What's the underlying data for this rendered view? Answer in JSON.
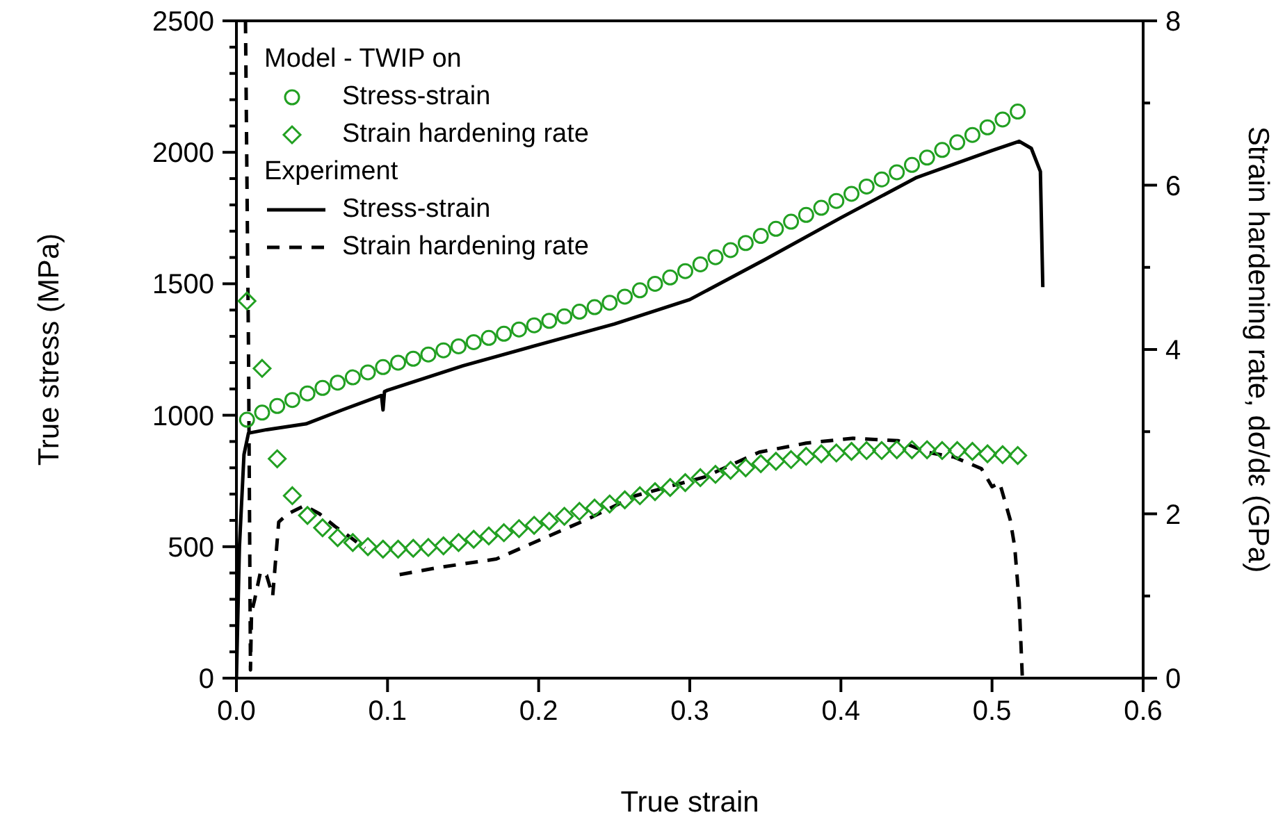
{
  "chart_data": {
    "type": "scatter",
    "xlabel": "True strain",
    "ylabel": "True stress (MPa)",
    "y2label": "Strain hardening rate, dσ/dε (GPa)",
    "annotations": [
      "Model - TWIP on",
      "Experiment"
    ],
    "x": [
      0.007,
      0.017,
      0.027,
      0.037,
      0.047,
      0.057,
      0.067,
      0.077,
      0.087,
      0.097,
      0.107,
      0.117,
      0.127,
      0.137,
      0.147,
      0.157,
      0.167,
      0.177,
      0.187,
      0.197,
      0.207,
      0.217,
      0.227,
      0.237,
      0.247,
      0.257,
      0.267,
      0.277,
      0.287,
      0.297,
      0.307,
      0.317,
      0.327,
      0.337,
      0.347,
      0.357,
      0.367,
      0.377,
      0.387,
      0.397,
      0.407,
      0.417,
      0.427,
      0.437,
      0.447,
      0.457,
      0.467,
      0.477,
      0.487,
      0.497,
      0.507,
      0.517
    ],
    "series": [
      {
        "name": "Stress-strain",
        "type": "scatter",
        "marker": "circle",
        "color": "#22a022",
        "values": [
          983,
          1010,
          1035,
          1058,
          1083,
          1104,
          1124,
          1144,
          1163,
          1183,
          1200,
          1215,
          1231,
          1247,
          1262,
          1278,
          1294,
          1310,
          1326,
          1342,
          1359,
          1376,
          1394,
          1411,
          1428,
          1451,
          1475,
          1500,
          1524,
          1548,
          1574,
          1601,
          1628,
          1655,
          1682,
          1709,
          1736,
          1762,
          1789,
          1815,
          1842,
          1870,
          1897,
          1924,
          1952,
          1980,
          2009,
          2038,
          2066,
          2095,
          2125,
          2155
        ]
      },
      {
        "name": "Strain hardening rate",
        "type": "scatter",
        "marker": "diamond",
        "axis": "y2",
        "color": "#22a022",
        "values": [
          4.59,
          3.77,
          2.67,
          2.22,
          1.98,
          1.83,
          1.71,
          1.65,
          1.6,
          1.57,
          1.57,
          1.58,
          1.59,
          1.61,
          1.65,
          1.69,
          1.73,
          1.77,
          1.82,
          1.86,
          1.91,
          1.97,
          2.03,
          2.07,
          2.12,
          2.17,
          2.22,
          2.27,
          2.32,
          2.38,
          2.44,
          2.48,
          2.53,
          2.56,
          2.61,
          2.64,
          2.66,
          2.7,
          2.73,
          2.74,
          2.76,
          2.77,
          2.77,
          2.78,
          2.78,
          2.78,
          2.77,
          2.77,
          2.76,
          2.73,
          2.72,
          2.71
        ]
      },
      {
        "name": "Stress-strain",
        "type": "line",
        "marker": "none",
        "line_style": "solid",
        "color": "#000000",
        "x": [
          0,
          0.002,
          0.005,
          0.008,
          0.02,
          0.046,
          0.07,
          0.096,
          0.097,
          0.098,
          0.1,
          0.15,
          0.2,
          0.25,
          0.3,
          0.35,
          0.4,
          0.45,
          0.5,
          0.518,
          0.526,
          0.532,
          0.5336
        ],
        "values": [
          0,
          500,
          850,
          932,
          945,
          967,
          1020,
          1075,
          1020,
          1090,
          1095,
          1188,
          1268,
          1347,
          1440,
          1593,
          1751,
          1904,
          2007,
          2042,
          2015,
          1927,
          1487
        ]
      },
      {
        "name": "Strain hardening rate",
        "type": "line",
        "marker": "none",
        "line_style": "dashed",
        "axis": "y2",
        "color": "#000000",
        "x": [
          0.006,
          0.008,
          0.0093,
          0.01,
          0.012,
          0.016,
          0.02,
          0.024,
          0.028,
          0.034,
          0.045,
          0.055,
          0.065,
          0.075,
          0.085,
          0.095,
          0.108,
          0.135,
          0.172,
          0.203,
          0.233,
          0.264,
          0.31,
          0.346,
          0.377,
          0.408,
          0.438,
          0.457,
          0.475,
          0.493,
          0.5,
          0.505,
          0.512,
          0.515,
          0.518,
          0.52
        ],
        "values": [
          8,
          4,
          0.1,
          0.8,
          0.95,
          1.3,
          1.25,
          1.0,
          1.9,
          2.0,
          2.1,
          2.0,
          1.85,
          1.72,
          1.58,
          null,
          1.26,
          1.35,
          1.45,
          1.7,
          1.94,
          2.22,
          2.45,
          2.75,
          2.86,
          2.92,
          2.89,
          2.75,
          2.69,
          2.55,
          2.33,
          2.38,
          1.93,
          1.6,
          0.92,
          0.03
        ]
      }
    ],
    "xlim": [
      0,
      0.6
    ],
    "xticks": [
      {
        "value": 0,
        "label": "0.0"
      },
      0.1,
      0.2,
      0.3,
      0.4,
      0.5,
      0.6
    ],
    "ylim": [
      0,
      2500
    ],
    "yticks": [
      0,
      {
        "value": 100,
        "label": null
      },
      {
        "value": 200,
        "label": null
      },
      {
        "value": 300,
        "label": null
      },
      {
        "value": 400,
        "label": null
      },
      500,
      {
        "value": 600,
        "label": null
      },
      {
        "value": 700,
        "label": null
      },
      {
        "value": 800,
        "label": null
      },
      {
        "value": 900,
        "label": null
      },
      1000,
      {
        "value": 1100,
        "label": null
      },
      {
        "value": 1200,
        "label": null
      },
      {
        "value": 1300,
        "label": null
      },
      {
        "value": 1400,
        "label": null
      },
      1500,
      {
        "value": 1600,
        "label": null
      },
      {
        "value": 1700,
        "label": null
      },
      {
        "value": 1800,
        "label": null
      },
      {
        "value": 1900,
        "label": null
      },
      2000,
      {
        "value": 2100,
        "label": null
      },
      {
        "value": 2200,
        "label": null
      },
      {
        "value": 2300,
        "label": null
      },
      {
        "value": 2400,
        "label": null
      },
      2500
    ],
    "y2lim": [
      0,
      8
    ],
    "y2ticks": [
      0,
      {
        "value": 1,
        "label": null
      },
      2,
      {
        "value": 3,
        "label": null
      },
      4,
      {
        "value": 5,
        "label": null
      },
      6,
      {
        "value": 7,
        "label": null
      },
      8
    ],
    "grid": false,
    "legend": "top left"
  }
}
